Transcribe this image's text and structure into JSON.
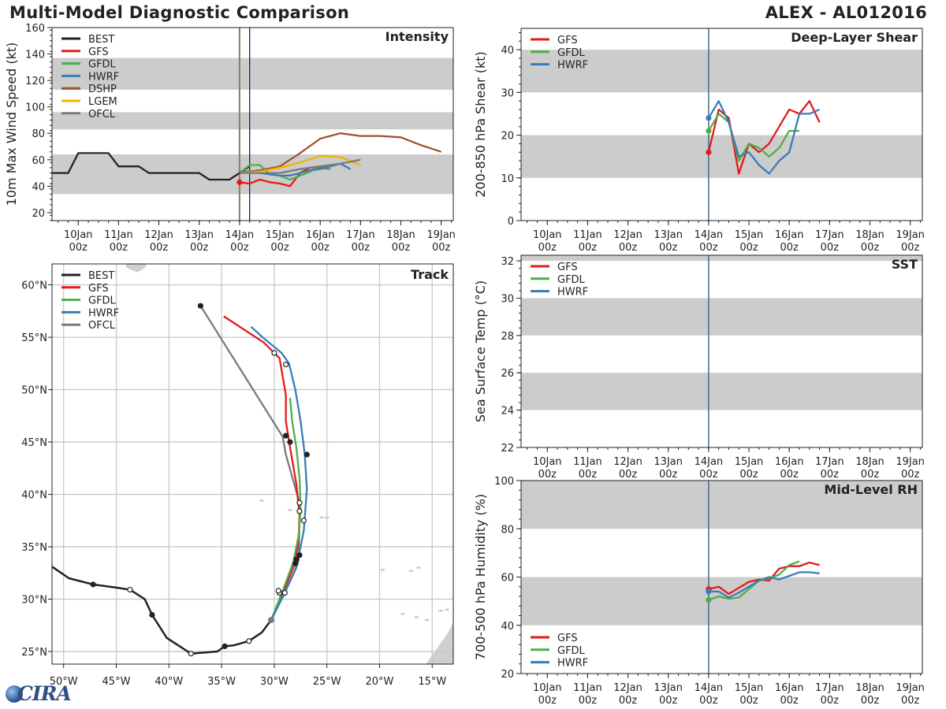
{
  "header": {
    "title": "Multi-Model Diagnostic Comparison",
    "storm": "ALEX - AL012016"
  },
  "logo": {
    "text": "CIRA"
  },
  "colors": {
    "BEST": "#222222",
    "GFS": "#e41a1c",
    "GFDL": "#4daf4a",
    "HWRF": "#377eb8",
    "DSHP": "#a0522d",
    "LGEM": "#f0b400",
    "OFCL": "#7a7a7a",
    "band": "#cccccc",
    "initline": "#4a6a88",
    "initline_olive": "#8b7d5a"
  },
  "time_axis": {
    "ticks": [
      10,
      11,
      12,
      13,
      14,
      15,
      16,
      17,
      18,
      19
    ],
    "labels_top": [
      "10Jan",
      "11Jan",
      "12Jan",
      "13Jan",
      "14Jan",
      "15Jan",
      "16Jan",
      "17Jan",
      "18Jan",
      "19Jan"
    ],
    "labels_bottom": [
      "00z",
      "00z",
      "00z",
      "00z",
      "00z",
      "00z",
      "00z",
      "00z",
      "00z",
      "00z"
    ],
    "xlim": [
      9.35,
      19.3
    ],
    "init_time": 14.0,
    "current_time": 14.25
  },
  "chart_data": [
    {
      "id": "intensity",
      "type": "line",
      "title": "Intensity",
      "ylabel": "10m Max Wind Speed (kt)",
      "ylim": [
        14,
        160
      ],
      "yticks": [
        20,
        40,
        60,
        80,
        100,
        120,
        140,
        160
      ],
      "bands": [
        [
          34,
          64
        ],
        [
          83,
          96
        ],
        [
          113,
          137
        ]
      ],
      "legend": [
        "BEST",
        "GFS",
        "GFDL",
        "HWRF",
        "DSHP",
        "LGEM",
        "OFCL"
      ],
      "series": [
        {
          "name": "BEST",
          "x": [
            9.35,
            9.5,
            9.75,
            10.0,
            10.25,
            10.5,
            10.75,
            11.0,
            11.25,
            11.5,
            11.75,
            12.0,
            12.25,
            12.5,
            12.75,
            13.0,
            13.25,
            13.5,
            13.75,
            14.0,
            14.25
          ],
          "y": [
            50,
            50,
            50,
            65,
            65,
            65,
            65,
            55,
            55,
            55,
            50,
            50,
            50,
            50,
            50,
            50,
            45,
            45,
            45,
            50,
            55
          ]
        },
        {
          "name": "GFS",
          "x": [
            14.0,
            14.25,
            14.5,
            14.75,
            15.0,
            15.25,
            15.5,
            15.75,
            16.0,
            16.25
          ],
          "y": [
            43,
            42,
            45,
            43,
            42,
            40,
            50,
            54,
            54,
            53
          ],
          "marker": [
            14.0,
            43
          ]
        },
        {
          "name": "GFDL",
          "x": [
            14.0,
            14.25,
            14.5,
            14.75,
            15.0,
            15.25,
            15.5,
            15.75,
            16.0,
            16.25
          ],
          "y": [
            50,
            56,
            56,
            49,
            48,
            45,
            48,
            51,
            55,
            53
          ]
        },
        {
          "name": "HWRF",
          "x": [
            14.0,
            14.25,
            14.5,
            14.75,
            15.0,
            15.25,
            15.5,
            15.75,
            16.0,
            16.25,
            16.5,
            16.75
          ],
          "y": [
            51,
            51,
            50,
            49,
            48,
            48,
            50,
            52,
            53,
            55,
            57,
            53
          ]
        },
        {
          "name": "DSHP",
          "x": [
            14.0,
            14.5,
            15.0,
            15.5,
            16.0,
            16.5,
            17.0,
            17.5,
            18.0,
            18.5,
            19.0
          ],
          "y": [
            50,
            52,
            55,
            65,
            76,
            80,
            78,
            78,
            77,
            71,
            66
          ]
        },
        {
          "name": "LGEM",
          "x": [
            14.0,
            14.5,
            15.0,
            15.5,
            16.0,
            16.5,
            17.0
          ],
          "y": [
            50,
            51,
            54,
            58,
            63,
            62,
            56
          ]
        },
        {
          "name": "OFCL",
          "x": [
            14.0,
            14.5,
            15.0,
            15.5,
            16.0,
            16.5,
            17.0
          ],
          "y": [
            50,
            50,
            50,
            53,
            55,
            57,
            60
          ]
        }
      ]
    },
    {
      "id": "shear",
      "type": "line",
      "title": "Deep-Layer Shear",
      "ylabel": "200-850 hPa Shear (kt)",
      "ylim": [
        0,
        45
      ],
      "yticks": [
        0,
        10,
        20,
        30,
        40
      ],
      "bands": [
        [
          10,
          20
        ],
        [
          30,
          40
        ]
      ],
      "legend": [
        "GFS",
        "GFDL",
        "HWRF"
      ],
      "series": [
        {
          "name": "GFS",
          "x": [
            14.0,
            14.25,
            14.5,
            14.75,
            15.0,
            15.25,
            15.5,
            15.75,
            16.0,
            16.25,
            16.5,
            16.75
          ],
          "y": [
            16,
            26,
            24,
            11,
            18,
            16,
            18,
            22,
            26,
            25,
            28,
            23
          ],
          "marker": [
            14.0,
            16
          ]
        },
        {
          "name": "GFDL",
          "x": [
            14.0,
            14.25,
            14.5,
            14.75,
            15.0,
            15.25,
            15.5,
            15.75,
            16.0,
            16.25
          ],
          "y": [
            21,
            25,
            23,
            14,
            18,
            17,
            15,
            17,
            21,
            21
          ],
          "marker": [
            14.0,
            21
          ]
        },
        {
          "name": "HWRF",
          "x": [
            14.0,
            14.25,
            14.5,
            14.75,
            15.0,
            15.25,
            15.5,
            15.75,
            16.0,
            16.25,
            16.5,
            16.75
          ],
          "y": [
            24,
            28,
            23,
            15,
            16,
            13,
            11,
            14,
            16,
            25,
            25,
            26
          ],
          "marker": [
            14.0,
            24
          ]
        }
      ]
    },
    {
      "id": "sst",
      "type": "line",
      "title": "SST",
      "ylabel": "Sea Surface Temp (°C)",
      "ylim": [
        22,
        32.3
      ],
      "yticks": [
        22,
        24,
        26,
        28,
        30,
        32
      ],
      "bands": [
        [
          24,
          26
        ],
        [
          28,
          30
        ],
        [
          32,
          32.3
        ]
      ],
      "legend": [
        "GFS",
        "GFDL",
        "HWRF"
      ],
      "series": []
    },
    {
      "id": "rh",
      "type": "line",
      "title": "Mid-Level RH",
      "ylabel": "700-500 hPa Humidity (%)",
      "ylim": [
        20,
        100
      ],
      "yticks": [
        20,
        40,
        60,
        80,
        100
      ],
      "bands": [
        [
          40,
          60
        ],
        [
          80,
          100
        ]
      ],
      "legend": [
        "GFS",
        "GFDL",
        "HWRF"
      ],
      "series": [
        {
          "name": "GFS",
          "x": [
            14.0,
            14.25,
            14.5,
            14.75,
            15.0,
            15.25,
            15.5,
            15.75,
            16.0,
            16.25,
            16.5,
            16.75
          ],
          "y": [
            55,
            56,
            53,
            55.5,
            58,
            59,
            58.5,
            63.5,
            64.5,
            64.5,
            66,
            65
          ],
          "marker": [
            14.0,
            55
          ]
        },
        {
          "name": "GFDL",
          "x": [
            14.0,
            14.25,
            14.5,
            14.75,
            15.0,
            15.25,
            15.5,
            15.75,
            16.0,
            16.25
          ],
          "y": [
            50.5,
            52,
            51,
            51.5,
            55,
            58.5,
            59.5,
            61,
            65,
            66.5
          ],
          "marker": [
            14.0,
            50.5
          ]
        },
        {
          "name": "HWRF",
          "x": [
            14.0,
            14.25,
            14.5,
            14.75,
            15.0,
            15.25,
            15.5,
            15.75,
            16.0,
            16.25,
            16.5,
            16.75
          ],
          "y": [
            54,
            54,
            51.5,
            53.5,
            56,
            58.5,
            60,
            59,
            60.5,
            62,
            62,
            61.5
          ],
          "marker": [
            14.0,
            54
          ]
        }
      ]
    },
    {
      "id": "track",
      "type": "track_map",
      "title": "Track",
      "xlim": [
        -51.1,
        -13.0
      ],
      "ylim": [
        23.8,
        62.0
      ],
      "lon_ticks": [
        -50,
        -45,
        -40,
        -35,
        -30,
        -25,
        -20,
        -15
      ],
      "lon_labels": [
        "50°W",
        "45°W",
        "40°W",
        "35°W",
        "30°W",
        "25°W",
        "20°W",
        "15°W"
      ],
      "lat_ticks": [
        25,
        30,
        35,
        40,
        45,
        50,
        55,
        60
      ],
      "lat_labels": [
        "25°N",
        "30°N",
        "35°N",
        "40°N",
        "45°N",
        "50°N",
        "55°N",
        "60°N"
      ],
      "legend": [
        "BEST",
        "GFS",
        "GFDL",
        "HWRF",
        "OFCL"
      ],
      "series": [
        {
          "name": "BEST",
          "lon": [
            -51.1,
            -49.5,
            -47.2,
            -45.0,
            -43.7,
            -42.3,
            -41.6,
            -40.2,
            -37.9,
            -35.4,
            -34.7,
            -33.8,
            -32.4,
            -31.2,
            -30.3
          ],
          "lat": [
            33.1,
            32.0,
            31.4,
            31.1,
            30.9,
            30.0,
            28.5,
            26.3,
            24.8,
            25.0,
            25.5,
            25.6,
            26.0,
            26.8,
            28.0
          ],
          "filled": [
            [
              -47.2,
              31.4
            ],
            [
              -41.6,
              28.5
            ],
            [
              -34.7,
              25.5
            ]
          ],
          "open": [
            [
              -43.7,
              30.9
            ],
            [
              -37.9,
              24.8
            ],
            [
              -32.4,
              26.0
            ]
          ],
          "end": [
            -30.3,
            28.0
          ]
        },
        {
          "name": "GFS",
          "lon": [
            -30.3,
            -29.0,
            -28.1,
            -27.7,
            -27.6,
            -27.9,
            -28.5,
            -28.9,
            -28.9,
            -29.5,
            -31.0,
            -34.8
          ],
          "lat": [
            28.0,
            31.0,
            33.3,
            35.5,
            38.0,
            41.0,
            44.5,
            47.0,
            49.5,
            53.0,
            54.5,
            57.0
          ]
        },
        {
          "name": "GFDL",
          "lon": [
            -30.3,
            -29.2,
            -28.2,
            -27.7,
            -27.5,
            -27.6,
            -27.9,
            -28.3,
            -28.5
          ],
          "lat": [
            28.0,
            30.8,
            33.5,
            36.0,
            38.5,
            41.5,
            44.5,
            47.0,
            49.2
          ]
        },
        {
          "name": "HWRF",
          "lon": [
            -30.3,
            -29.0,
            -27.9,
            -27.2,
            -26.9,
            -27.1,
            -27.5,
            -28.0,
            -28.6,
            -29.3,
            -31.0,
            -32.2
          ],
          "lat": [
            28.0,
            30.6,
            33.0,
            36.5,
            40.5,
            43.8,
            47.0,
            50.0,
            52.5,
            53.5,
            54.9,
            56.0
          ]
        },
        {
          "name": "OFCL",
          "lon": [
            -30.3,
            -29.0,
            -27.7,
            -27.6,
            -27.6,
            -28.9,
            -29.2,
            -37.0
          ],
          "lat": [
            28.0,
            30.6,
            33.6,
            37.5,
            39.2,
            43.8,
            45.5,
            58.0
          ]
        }
      ],
      "track_points_filled": [
        [
          -28.9,
          45.6
        ],
        [
          -28.5,
          45.0
        ],
        [
          -26.9,
          43.8
        ],
        [
          -27.9,
          33.8
        ],
        [
          -27.6,
          34.2
        ],
        [
          -28.0,
          33.4
        ],
        [
          -37.0,
          58.0
        ]
      ],
      "track_points_open": [
        [
          -29.5,
          30.6
        ],
        [
          -29.6,
          30.8
        ],
        [
          -29.0,
          30.6
        ],
        [
          -27.6,
          39.2
        ],
        [
          -27.6,
          38.4
        ],
        [
          -27.2,
          37.5
        ],
        [
          -30.0,
          53.5
        ],
        [
          -28.9,
          52.4
        ]
      ]
    }
  ]
}
